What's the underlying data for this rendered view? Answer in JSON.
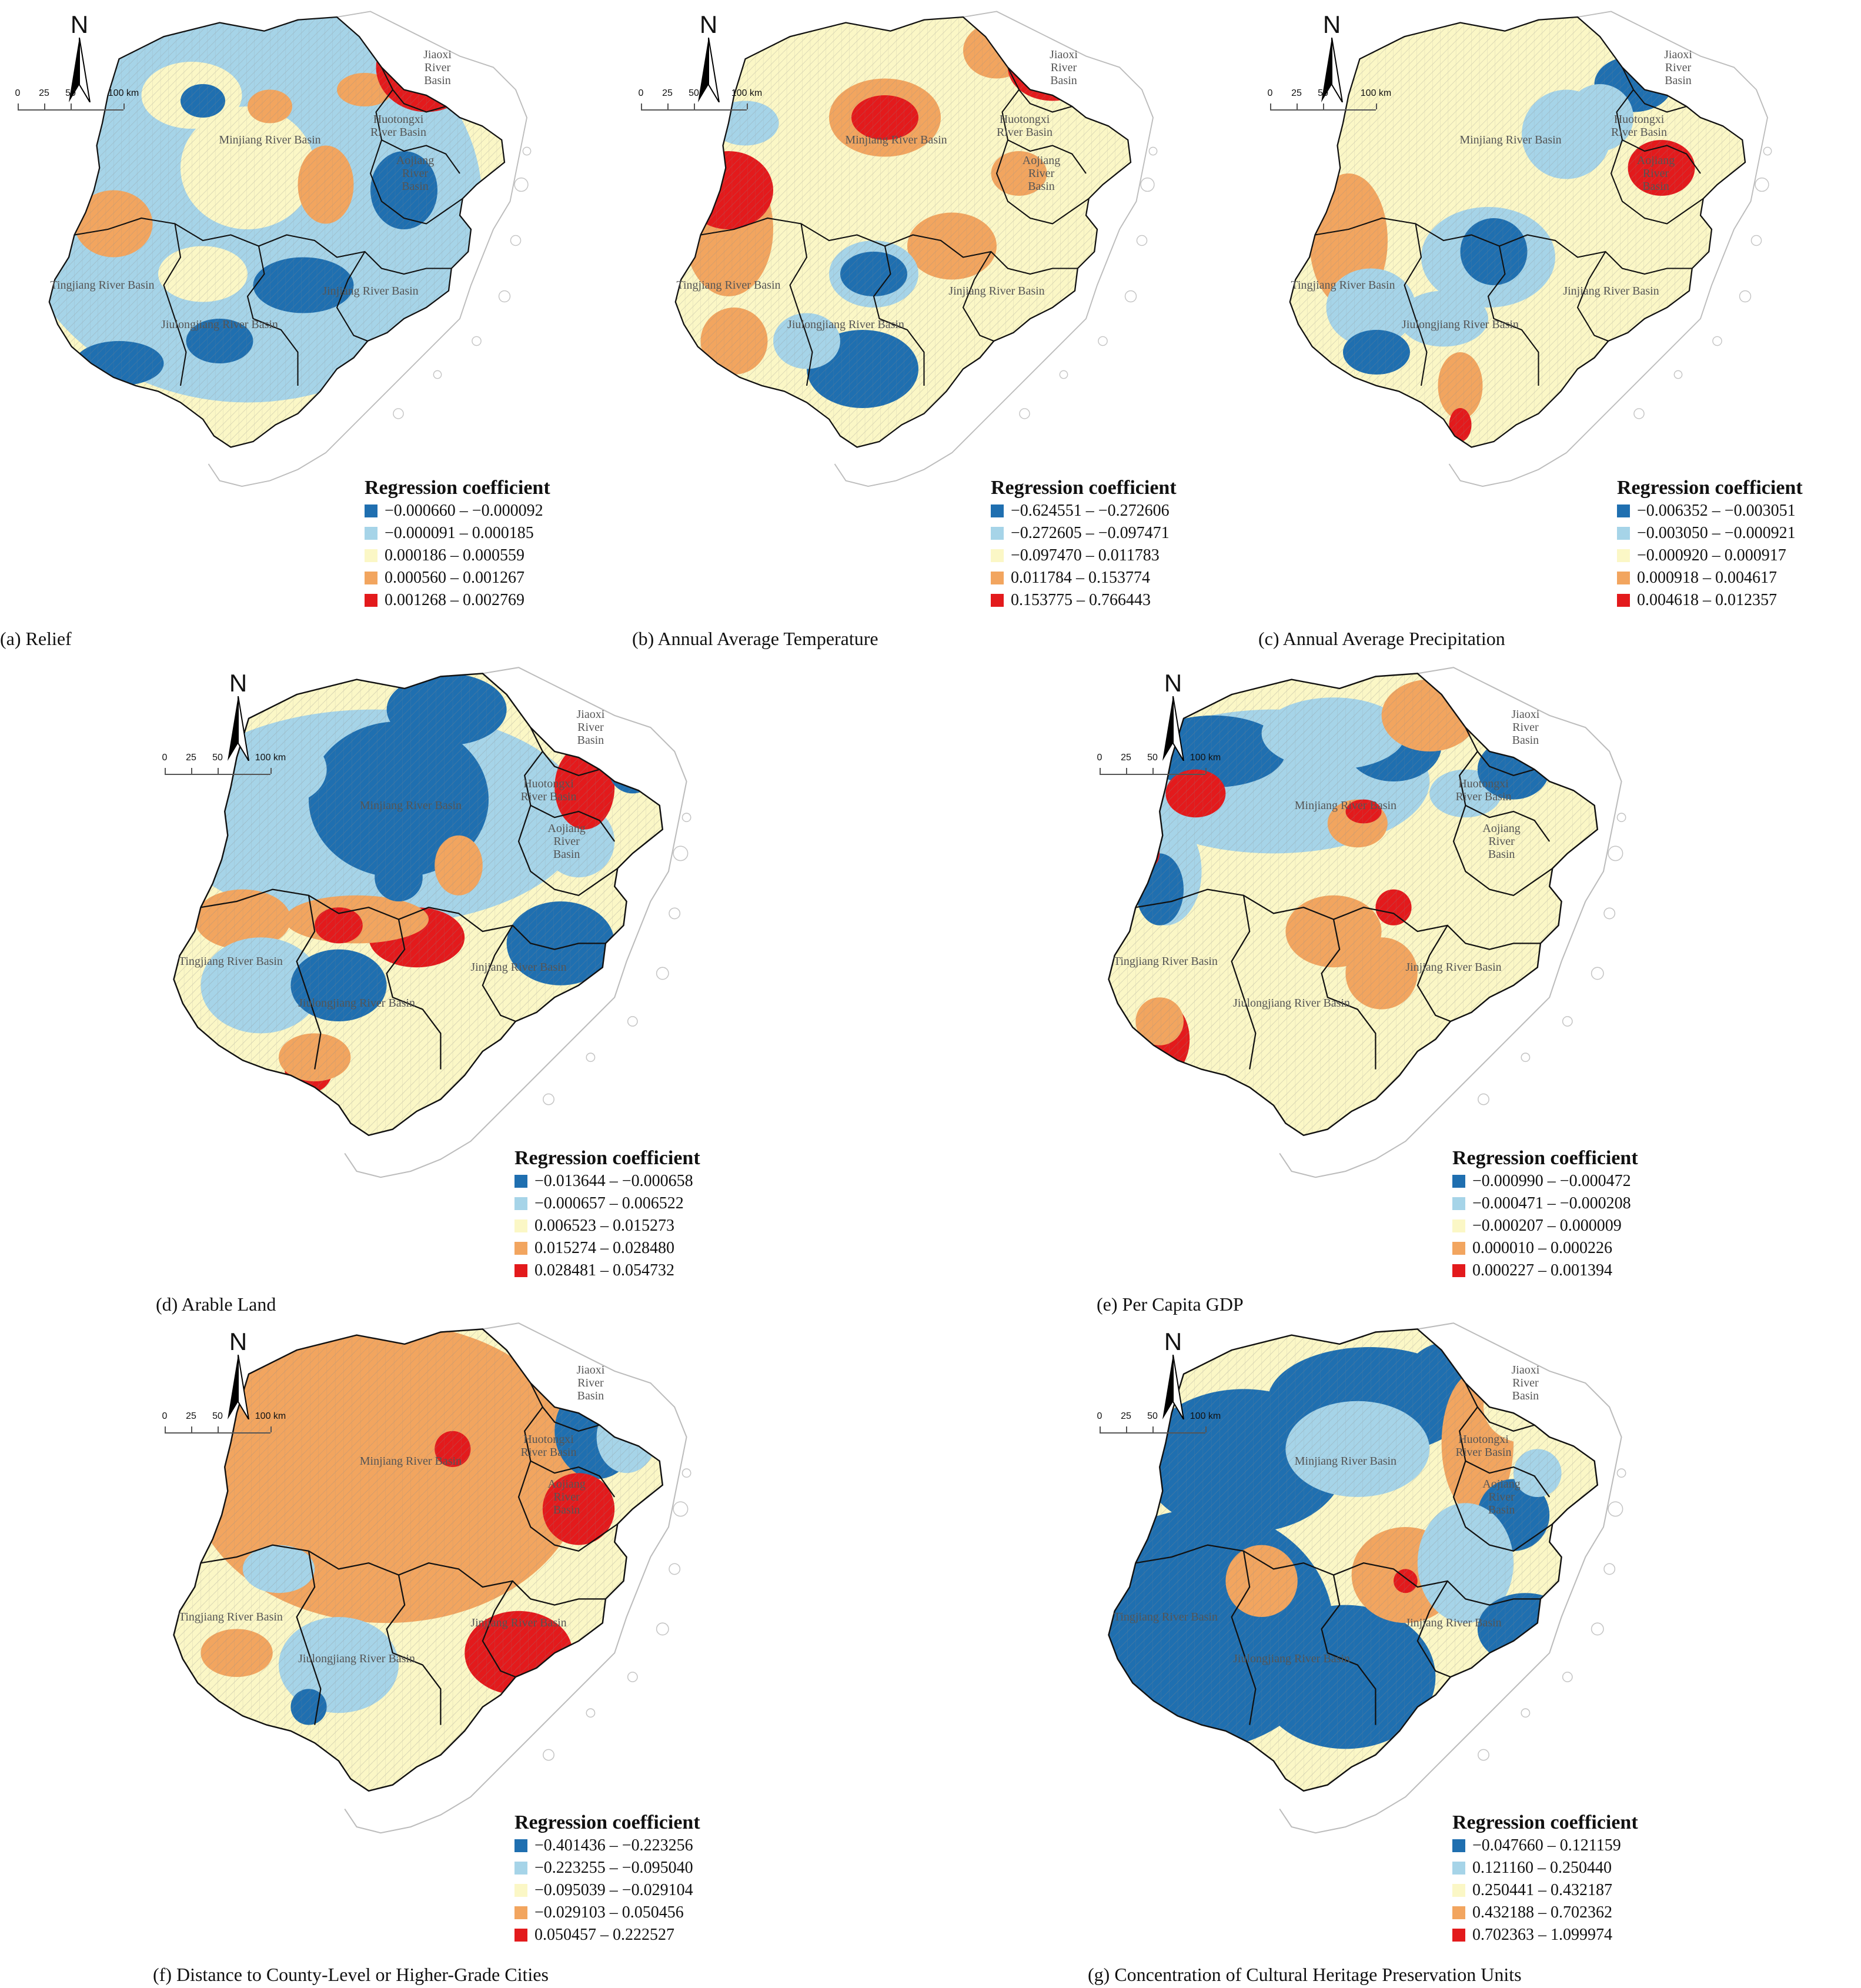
{
  "north_symbol": "N",
  "north_icon": "north-arrow-icon",
  "scale": {
    "ticks": [
      "0",
      "25",
      "50",
      "100 km"
    ]
  },
  "legend_title": "Regression coefficient",
  "palette": [
    "#1f6fb0",
    "#a6d4e8",
    "#fbf7c6",
    "#f2a55f",
    "#e31a1c"
  ],
  "basin_names": {
    "jiaoxi": "Jiaoxi River Basin",
    "huotongxi": "Huotongxi River Basin",
    "aojiang": "Aojiang River Basin",
    "minjiang": "Minjiang River Basin",
    "tingjiang": "Tingjiang River Basin",
    "jiulongjiang": "Jiulongjiang River Basin",
    "jinjiang": "Jinjiang River Basin"
  },
  "panels": [
    {
      "id": "a",
      "caption": "(a) Relief",
      "classes": [
        "−0.000660 – −0.000092",
        "−0.000091 – 0.000185",
        "0.000186 – 0.000559",
        "0.000560 – 0.001267",
        "0.001268 – 0.002769"
      ]
    },
    {
      "id": "b",
      "caption": "(b) Annual Average Temperature",
      "classes": [
        "−0.624551 – −0.272606",
        "−0.272605 – −0.097471",
        "−0.097470 – 0.011783",
        "0.011784 – 0.153774",
        "0.153775 – 0.766443"
      ]
    },
    {
      "id": "c",
      "caption": "(c) Annual Average Precipitation",
      "classes": [
        "−0.006352 – −0.003051",
        "−0.003050 – −0.000921",
        "−0.000920 – 0.000917",
        "0.000918 – 0.004617",
        "0.004618 – 0.012357"
      ]
    },
    {
      "id": "d",
      "caption": "(d) Arable Land",
      "classes": [
        "−0.013644 – −0.000658",
        "−0.000657 – 0.006522",
        "0.006523 – 0.015273",
        "0.015274 – 0.028480",
        "0.028481 – 0.054732"
      ]
    },
    {
      "id": "e",
      "caption": "(e) Per Capita GDP",
      "classes": [
        "−0.000990 – −0.000472",
        "−0.000471 – −0.000208",
        "−0.000207 – 0.000009",
        "0.000010 – 0.000226",
        "0.000227 – 0.001394"
      ]
    },
    {
      "id": "f",
      "caption": "(f) Distance to County-Level or Higher-Grade Cities",
      "classes": [
        "−0.401436 – −0.223256",
        "−0.223255 – −0.095040",
        "−0.095039 – −0.029104",
        "−0.029103 – 0.050456",
        "0.050457 – 0.222527"
      ]
    },
    {
      "id": "g",
      "caption": "(g) Concentration of Cultural Heritage Preservation Units",
      "classes": [
        "−0.047660 – 0.121159",
        "0.121160 – 0.250440",
        "0.250441 – 0.432187",
        "0.432188 – 0.702362",
        "0.702363 – 1.099974"
      ]
    }
  ]
}
